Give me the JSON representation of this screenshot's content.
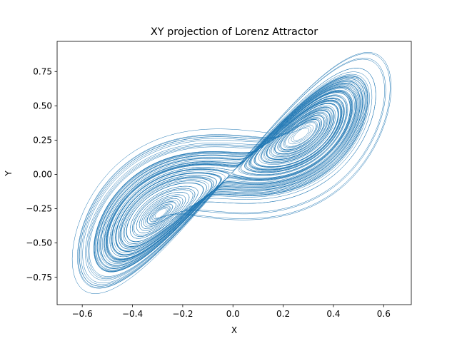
{
  "chart_data": {
    "type": "line",
    "title": "XY projection of Lorenz Attractor",
    "xlabel": "X",
    "ylabel": "Y",
    "xlim": [
      -0.7,
      0.71
    ],
    "ylim": [
      -0.95,
      0.97
    ],
    "xticks": [
      -0.6,
      -0.4,
      -0.2,
      0.0,
      0.2,
      0.4,
      0.6
    ],
    "xtick_labels": [
      "−0.6",
      "−0.4",
      "−0.2",
      "0.0",
      "0.2",
      "0.4",
      "0.6"
    ],
    "yticks": [
      -0.75,
      -0.5,
      -0.25,
      0.0,
      0.25,
      0.5,
      0.75
    ],
    "ytick_labels": [
      "−0.75",
      "−0.50",
      "−0.25",
      "0.00",
      "0.25",
      "0.50",
      "0.75"
    ],
    "grid": false,
    "legend": "none",
    "series": [
      {
        "color": "#1f77b4",
        "line_width": 0.5,
        "x_range": [
          -0.64,
          0.63
        ],
        "y_range": [
          -0.87,
          0.89
        ],
        "lobes": [
          {
            "center": [
              -0.34,
              -0.33
            ],
            "x_extent": [
              -0.64,
              -0.16
            ],
            "y_extent": [
              -0.87,
              0.18
            ],
            "hole_x": [
              -0.47,
              -0.16
            ],
            "hole_y": [
              -0.56,
              -0.09
            ]
          },
          {
            "center": [
              0.34,
              0.33
            ],
            "x_extent": [
              0.11,
              0.63
            ],
            "y_extent": [
              -0.18,
              0.89
            ],
            "hole_x": [
              0.2,
              0.49
            ],
            "hole_y": [
              0.07,
              0.6
            ]
          }
        ]
      }
    ]
  }
}
